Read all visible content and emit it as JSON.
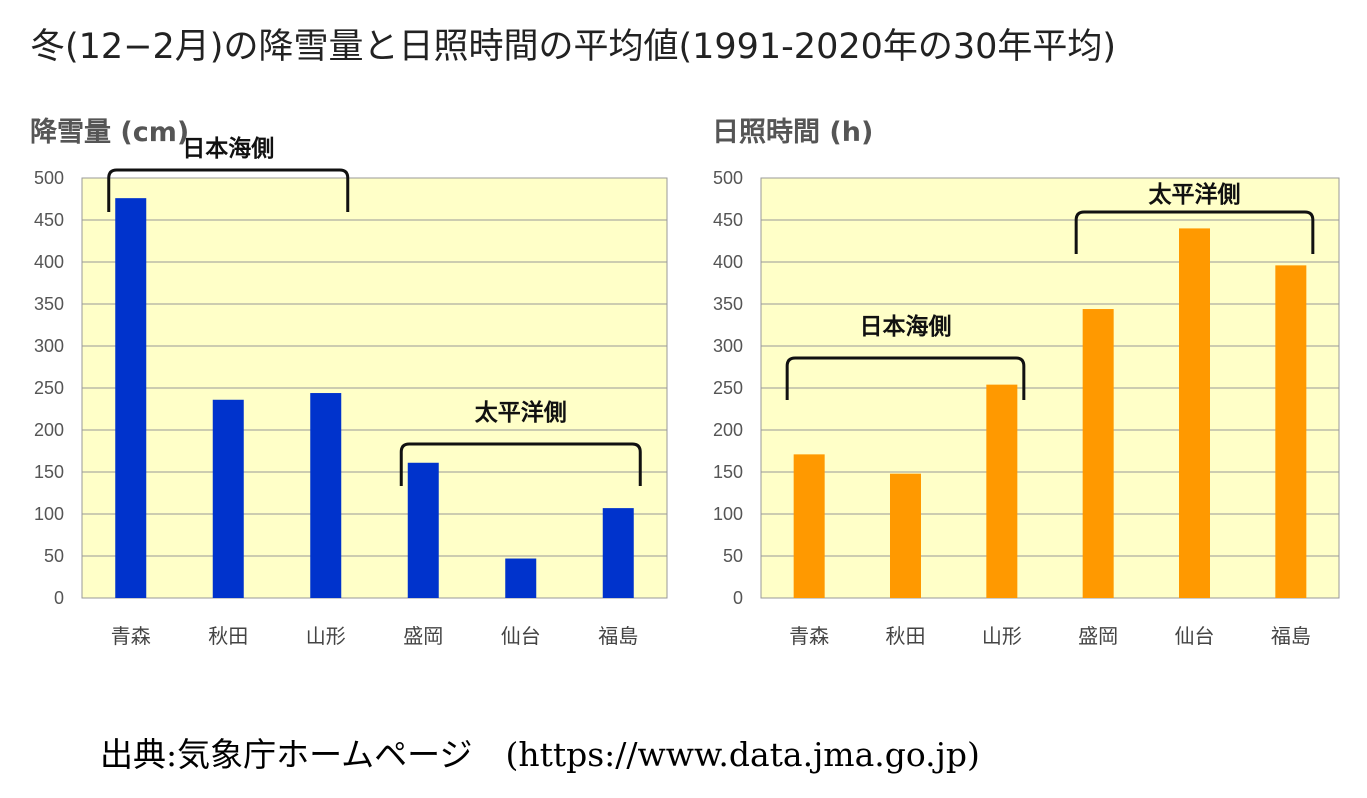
{
  "title": "冬(12−2月)の降雪量と日照時間の平均値(1991-2020年の30年平均)",
  "source": "出典:気象庁ホームページ　(https://www.data.jma.go.jp)",
  "chart_data": [
    {
      "type": "bar",
      "title": "降雪量 (cm)",
      "categories": [
        "青森",
        "秋田",
        "山形",
        "盛岡",
        "仙台",
        "福島"
      ],
      "values": [
        476,
        236,
        244,
        161,
        47,
        107
      ],
      "ylim": [
        0,
        500
      ],
      "yticks": [
        0,
        50,
        100,
        150,
        200,
        250,
        300,
        350,
        400,
        450,
        500
      ],
      "grid": true,
      "bar_color": "#0033cc",
      "plot_background": "#ffffc8",
      "groups": [
        {
          "label": "日本海側",
          "from": 0,
          "to": 2
        },
        {
          "label": "太平洋側",
          "from": 3,
          "to": 5
        }
      ]
    },
    {
      "type": "bar",
      "title": "日照時間 (h)",
      "categories": [
        "青森",
        "秋田",
        "山形",
        "盛岡",
        "仙台",
        "福島"
      ],
      "values": [
        171,
        148,
        254,
        344,
        440,
        396
      ],
      "ylim": [
        0,
        500
      ],
      "yticks": [
        0,
        50,
        100,
        150,
        200,
        250,
        300,
        350,
        400,
        450,
        500
      ],
      "grid": true,
      "bar_color": "#ff9900",
      "plot_background": "#ffffc8",
      "groups": [
        {
          "label": "日本海側",
          "from": 0,
          "to": 2
        },
        {
          "label": "太平洋側",
          "from": 3,
          "to": 5
        }
      ]
    }
  ]
}
